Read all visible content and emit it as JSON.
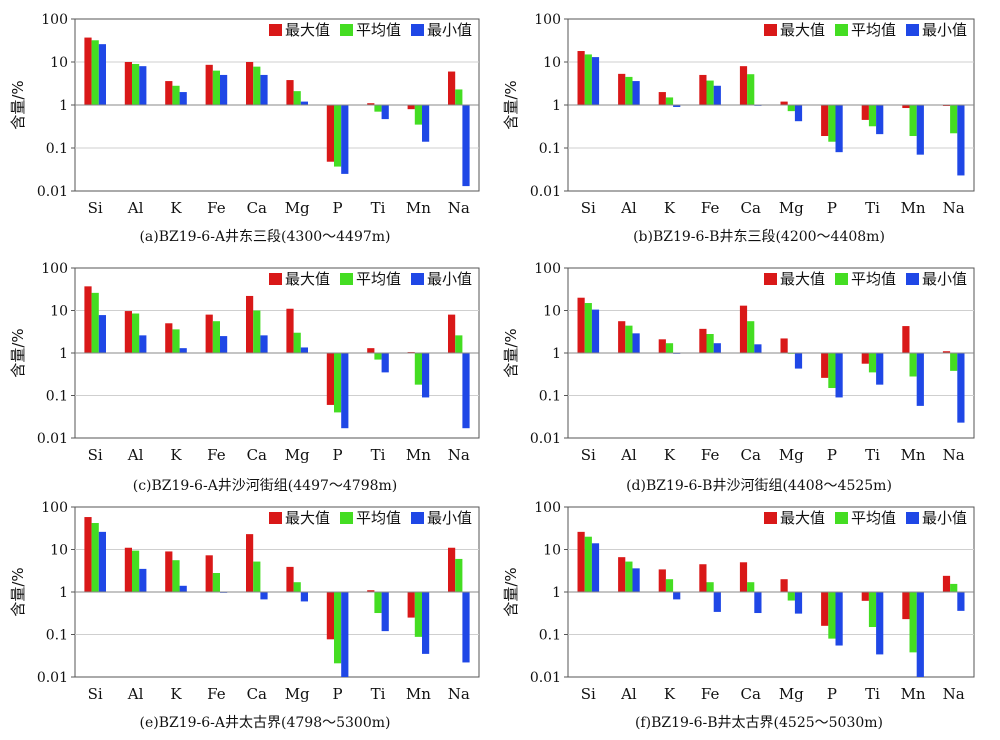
{
  "colors": {
    "max": "#d91818",
    "mean": "#44dd22",
    "min": "#1f47e6",
    "grid": "#cfcfcf",
    "axis": "#555555"
  },
  "chart_data": [
    {
      "type": "bar",
      "yscale": "log",
      "ylim": [
        0.01,
        100
      ],
      "title": "(a)BZ19-6-A井东三段(4300～4497m)",
      "ylabel": "含量/%",
      "yticks": [
        "0.01",
        "0.1",
        "1",
        "10",
        "100"
      ],
      "legend": {
        "placement": "top-right"
      },
      "categories": [
        "Si",
        "Al",
        "K",
        "Fe",
        "Ca",
        "Mg",
        "P",
        "Ti",
        "Mn",
        "Na"
      ],
      "series": [
        {
          "name": "最大值",
          "values": [
            37,
            10,
            3.6,
            8.6,
            10,
            3.8,
            0.048,
            1.1,
            0.8,
            6
          ]
        },
        {
          "name": "平均值",
          "values": [
            32,
            9,
            2.8,
            6.3,
            7.8,
            2.1,
            0.037,
            0.7,
            0.35,
            2.3
          ]
        },
        {
          "name": "最小值",
          "values": [
            26,
            8,
            2,
            5,
            5,
            1.2,
            0.025,
            0.47,
            0.14,
            0.013
          ]
        }
      ]
    },
    {
      "type": "bar",
      "yscale": "log",
      "ylim": [
        0.01,
        100
      ],
      "title": "(b)BZ19-6-B井东三段(4200～4408m)",
      "ylabel": "含量/%",
      "yticks": [
        "0.01",
        "0.1",
        "1",
        "10",
        "100"
      ],
      "legend": {
        "placement": "top-right"
      },
      "categories": [
        "Si",
        "Al",
        "K",
        "Fe",
        "Ca",
        "Mg",
        "P",
        "Ti",
        "Mn",
        "Na"
      ],
      "series": [
        {
          "name": "最大值",
          "values": [
            18,
            5.3,
            2,
            5,
            8,
            1.2,
            0.19,
            0.45,
            0.85,
            0.95
          ]
        },
        {
          "name": "平均值",
          "values": [
            15,
            4.5,
            1.5,
            3.7,
            5.2,
            0.72,
            0.14,
            0.32,
            0.19,
            0.22
          ]
        },
        {
          "name": "最小值",
          "values": [
            13,
            3.6,
            0.9,
            2.8,
            1,
            0.42,
            0.08,
            0.21,
            0.07,
            0.023
          ]
        }
      ]
    },
    {
      "type": "bar",
      "yscale": "log",
      "ylim": [
        0.01,
        100
      ],
      "title": "(c)BZ19-6-A井沙河街组(4497～4798m)",
      "ylabel": "含量/%",
      "yticks": [
        "0.01",
        "0.1",
        "1",
        "10",
        "100"
      ],
      "legend": {
        "placement": "top-right"
      },
      "categories": [
        "Si",
        "Al",
        "K",
        "Fe",
        "Ca",
        "Mg",
        "P",
        "Ti",
        "Mn",
        "Na"
      ],
      "series": [
        {
          "name": "最大值",
          "values": [
            37,
            9.7,
            5,
            8,
            22,
            11,
            0.06,
            1.3,
            1.05,
            8
          ]
        },
        {
          "name": "平均值",
          "values": [
            26,
            8.5,
            3.6,
            5.6,
            10,
            3,
            0.04,
            0.7,
            0.18,
            2.6
          ]
        },
        {
          "name": "最小值",
          "values": [
            7.8,
            2.6,
            1.3,
            2.5,
            2.6,
            1.35,
            0.017,
            0.35,
            0.09,
            0.017
          ]
        }
      ]
    },
    {
      "type": "bar",
      "yscale": "log",
      "ylim": [
        0.01,
        100
      ],
      "title": "(d)BZ19-6-B井沙河街组(4408～4525m)",
      "ylabel": "含量/%",
      "yticks": [
        "0.01",
        "0.1",
        "1",
        "10",
        "100"
      ],
      "legend": {
        "placement": "top-right"
      },
      "categories": [
        "Si",
        "Al",
        "K",
        "Fe",
        "Ca",
        "Mg",
        "P",
        "Ti",
        "Mn",
        "Na"
      ],
      "series": [
        {
          "name": "最大值",
          "values": [
            20,
            5.6,
            2.1,
            3.7,
            13,
            2.2,
            0.26,
            0.56,
            4.3,
            1.1
          ]
        },
        {
          "name": "平均值",
          "values": [
            15,
            4.4,
            1.7,
            2.8,
            5.6,
            1,
            0.15,
            0.35,
            0.28,
            0.38
          ]
        },
        {
          "name": "最小值",
          "values": [
            10.5,
            2.9,
            1,
            1.7,
            1.6,
            0.43,
            0.09,
            0.18,
            0.057,
            0.023
          ]
        }
      ]
    },
    {
      "type": "bar",
      "yscale": "log",
      "ylim": [
        0.01,
        100
      ],
      "title": "(e)BZ19-6-A井太古界(4798～5300m)",
      "ylabel": "含量/%",
      "yticks": [
        "0.01",
        "0.1",
        "1",
        "10",
        "100"
      ],
      "legend": {
        "placement": "top-right"
      },
      "categories": [
        "Si",
        "Al",
        "K",
        "Fe",
        "Ca",
        "Mg",
        "P",
        "Ti",
        "Mn",
        "Na"
      ],
      "series": [
        {
          "name": "最大值",
          "values": [
            58,
            11,
            9,
            7.3,
            23,
            3.9,
            0.077,
            1.1,
            0.25,
            11
          ]
        },
        {
          "name": "平均值",
          "values": [
            42,
            9.4,
            5.6,
            2.8,
            5.2,
            1.7,
            0.021,
            0.32,
            0.088,
            6
          ]
        },
        {
          "name": "最小值",
          "values": [
            26,
            3.5,
            1.4,
            1,
            0.67,
            0.6,
            0.01,
            0.12,
            0.035,
            0.022
          ]
        }
      ]
    },
    {
      "type": "bar",
      "yscale": "log",
      "ylim": [
        0.01,
        100
      ],
      "title": "(f)BZ19-6-B井太古界(4525～5030m)",
      "ylabel": "含量/%",
      "yticks": [
        "0.01",
        "0.1",
        "1",
        "10",
        "100"
      ],
      "legend": {
        "placement": "top-right"
      },
      "categories": [
        "Si",
        "Al",
        "K",
        "Fe",
        "Ca",
        "Mg",
        "P",
        "Ti",
        "Mn",
        "Na"
      ],
      "series": [
        {
          "name": "最大值",
          "values": [
            26,
            6.6,
            3.4,
            4.5,
            5,
            2,
            0.16,
            0.62,
            0.23,
            2.4
          ]
        },
        {
          "name": "平均值",
          "values": [
            20,
            5.2,
            2,
            1.7,
            1.7,
            0.63,
            0.08,
            0.15,
            0.038,
            1.55
          ]
        },
        {
          "name": "最小值",
          "values": [
            14,
            3.6,
            0.67,
            0.34,
            0.32,
            0.31,
            0.055,
            0.034,
            0.01,
            0.36
          ]
        }
      ]
    }
  ]
}
